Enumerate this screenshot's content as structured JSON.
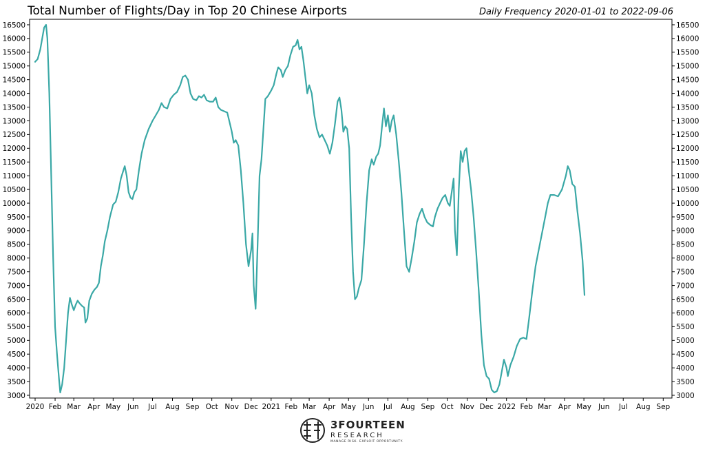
{
  "chart_data": {
    "type": "line",
    "title": "Total Number of Flights/Day in Top 20 Chinese Airports",
    "subtitle": "Daily Frequency 2020-01-01 to 2022-09-06",
    "x_range": [
      "2020-01-01",
      "2022-09-06"
    ],
    "ylim": [
      2900,
      16700
    ],
    "y_ticks": [
      3000,
      3500,
      4000,
      4500,
      5000,
      5500,
      6000,
      6500,
      7000,
      7500,
      8000,
      8500,
      9000,
      9500,
      10000,
      10500,
      11000,
      11500,
      12000,
      12500,
      13000,
      13500,
      14000,
      14500,
      15000,
      15500,
      16000,
      16500
    ],
    "x_ticks": [
      {
        "date": "2020-01-01",
        "label": "2020"
      },
      {
        "date": "2020-02-01",
        "label": "Feb"
      },
      {
        "date": "2020-03-01",
        "label": "Mar"
      },
      {
        "date": "2020-04-01",
        "label": "Apr"
      },
      {
        "date": "2020-05-01",
        "label": "May"
      },
      {
        "date": "2020-06-01",
        "label": "Jun"
      },
      {
        "date": "2020-07-01",
        "label": "Jul"
      },
      {
        "date": "2020-08-01",
        "label": "Aug"
      },
      {
        "date": "2020-09-01",
        "label": "Sep"
      },
      {
        "date": "2020-10-01",
        "label": "Oct"
      },
      {
        "date": "2020-11-01",
        "label": "Nov"
      },
      {
        "date": "2020-12-01",
        "label": "Dec"
      },
      {
        "date": "2021-01-01",
        "label": "2021"
      },
      {
        "date": "2021-02-01",
        "label": "Feb"
      },
      {
        "date": "2021-03-01",
        "label": "Mar"
      },
      {
        "date": "2021-04-01",
        "label": "Apr"
      },
      {
        "date": "2021-05-01",
        "label": "May"
      },
      {
        "date": "2021-06-01",
        "label": "Jun"
      },
      {
        "date": "2021-07-01",
        "label": "Jul"
      },
      {
        "date": "2021-08-01",
        "label": "Aug"
      },
      {
        "date": "2021-09-01",
        "label": "Sep"
      },
      {
        "date": "2021-10-01",
        "label": "Oct"
      },
      {
        "date": "2021-11-01",
        "label": "Nov"
      },
      {
        "date": "2021-12-01",
        "label": "Dec"
      },
      {
        "date": "2022-01-01",
        "label": "2022"
      },
      {
        "date": "2022-02-01",
        "label": "Feb"
      },
      {
        "date": "2022-03-01",
        "label": "Mar"
      },
      {
        "date": "2022-04-01",
        "label": "Apr"
      },
      {
        "date": "2022-05-01",
        "label": "May"
      },
      {
        "date": "2022-06-01",
        "label": "Jun"
      },
      {
        "date": "2022-07-01",
        "label": "Jul"
      },
      {
        "date": "2022-08-01",
        "label": "Aug"
      },
      {
        "date": "2022-09-01",
        "label": "Sep"
      }
    ],
    "series": [
      {
        "color": "#3aa8a6",
        "points": [
          [
            "2020-01-01",
            15150
          ],
          [
            "2020-01-05",
            15250
          ],
          [
            "2020-01-09",
            15600
          ],
          [
            "2020-01-12",
            16000
          ],
          [
            "2020-01-15",
            16400
          ],
          [
            "2020-01-18",
            16500
          ],
          [
            "2020-01-20",
            16000
          ],
          [
            "2020-01-23",
            14000
          ],
          [
            "2020-01-26",
            11000
          ],
          [
            "2020-01-29",
            8000
          ],
          [
            "2020-02-01",
            5500
          ],
          [
            "2020-02-04",
            4500
          ],
          [
            "2020-02-07",
            3600
          ],
          [
            "2020-02-09",
            3100
          ],
          [
            "2020-02-12",
            3400
          ],
          [
            "2020-02-15",
            4000
          ],
          [
            "2020-02-18",
            5000
          ],
          [
            "2020-02-21",
            6000
          ],
          [
            "2020-02-24",
            6550
          ],
          [
            "2020-02-27",
            6300
          ],
          [
            "2020-03-01",
            6100
          ],
          [
            "2020-03-04",
            6300
          ],
          [
            "2020-03-07",
            6450
          ],
          [
            "2020-03-10",
            6350
          ],
          [
            "2020-03-14",
            6250
          ],
          [
            "2020-03-17",
            6200
          ],
          [
            "2020-03-19",
            5650
          ],
          [
            "2020-03-22",
            5800
          ],
          [
            "2020-03-25",
            6450
          ],
          [
            "2020-03-29",
            6700
          ],
          [
            "2020-04-02",
            6850
          ],
          [
            "2020-04-06",
            6950
          ],
          [
            "2020-04-09",
            7100
          ],
          [
            "2020-04-12",
            7700
          ],
          [
            "2020-04-15",
            8100
          ],
          [
            "2020-04-18",
            8600
          ],
          [
            "2020-04-22",
            9000
          ],
          [
            "2020-04-26",
            9500
          ],
          [
            "2020-05-01",
            9950
          ],
          [
            "2020-05-05",
            10050
          ],
          [
            "2020-05-09",
            10400
          ],
          [
            "2020-05-13",
            10900
          ],
          [
            "2020-05-17",
            11200
          ],
          [
            "2020-05-19",
            11350
          ],
          [
            "2020-05-22",
            11000
          ],
          [
            "2020-05-25",
            10400
          ],
          [
            "2020-05-28",
            10200
          ],
          [
            "2020-05-31",
            10150
          ],
          [
            "2020-06-03",
            10400
          ],
          [
            "2020-06-06",
            10500
          ],
          [
            "2020-06-10",
            11200
          ],
          [
            "2020-06-14",
            11800
          ],
          [
            "2020-06-19",
            12300
          ],
          [
            "2020-06-25",
            12700
          ],
          [
            "2020-07-01",
            13000
          ],
          [
            "2020-07-06",
            13200
          ],
          [
            "2020-07-11",
            13400
          ],
          [
            "2020-07-15",
            13650
          ],
          [
            "2020-07-19",
            13500
          ],
          [
            "2020-07-24",
            13450
          ],
          [
            "2020-07-29",
            13800
          ],
          [
            "2020-08-03",
            13950
          ],
          [
            "2020-08-08",
            14050
          ],
          [
            "2020-08-13",
            14300
          ],
          [
            "2020-08-17",
            14600
          ],
          [
            "2020-08-21",
            14650
          ],
          [
            "2020-08-25",
            14500
          ],
          [
            "2020-08-29",
            14000
          ],
          [
            "2020-09-02",
            13800
          ],
          [
            "2020-09-07",
            13750
          ],
          [
            "2020-09-11",
            13900
          ],
          [
            "2020-09-15",
            13850
          ],
          [
            "2020-09-19",
            13950
          ],
          [
            "2020-09-23",
            13750
          ],
          [
            "2020-09-28",
            13700
          ],
          [
            "2020-10-03",
            13700
          ],
          [
            "2020-10-07",
            13850
          ],
          [
            "2020-10-11",
            13500
          ],
          [
            "2020-10-15",
            13400
          ],
          [
            "2020-10-20",
            13350
          ],
          [
            "2020-10-25",
            13300
          ],
          [
            "2020-10-29",
            12900
          ],
          [
            "2020-11-01",
            12600
          ],
          [
            "2020-11-04",
            12200
          ],
          [
            "2020-11-07",
            12300
          ],
          [
            "2020-11-11",
            12100
          ],
          [
            "2020-11-15",
            11200
          ],
          [
            "2020-11-19",
            10000
          ],
          [
            "2020-11-23",
            8500
          ],
          [
            "2020-11-27",
            7700
          ],
          [
            "2020-12-01",
            8300
          ],
          [
            "2020-12-03",
            8900
          ],
          [
            "2020-12-05",
            7000
          ],
          [
            "2020-12-08",
            6150
          ],
          [
            "2020-12-11",
            8500
          ],
          [
            "2020-12-14",
            11000
          ],
          [
            "2020-12-17",
            11600
          ],
          [
            "2020-12-20",
            12700
          ],
          [
            "2020-12-23",
            13800
          ],
          [
            "2020-12-27",
            13900
          ],
          [
            "2021-01-01",
            14100
          ],
          [
            "2021-01-05",
            14300
          ],
          [
            "2021-01-09",
            14700
          ],
          [
            "2021-01-12",
            14950
          ],
          [
            "2021-01-16",
            14850
          ],
          [
            "2021-01-19",
            14600
          ],
          [
            "2021-01-23",
            14850
          ],
          [
            "2021-01-27",
            15000
          ],
          [
            "2021-01-31",
            15400
          ],
          [
            "2021-02-04",
            15700
          ],
          [
            "2021-02-08",
            15750
          ],
          [
            "2021-02-11",
            15950
          ],
          [
            "2021-02-14",
            15600
          ],
          [
            "2021-02-17",
            15700
          ],
          [
            "2021-02-20",
            15200
          ],
          [
            "2021-02-23",
            14600
          ],
          [
            "2021-02-26",
            14000
          ],
          [
            "2021-03-01",
            14300
          ],
          [
            "2021-03-05",
            14000
          ],
          [
            "2021-03-09",
            13200
          ],
          [
            "2021-03-13",
            12700
          ],
          [
            "2021-03-17",
            12400
          ],
          [
            "2021-03-21",
            12500
          ],
          [
            "2021-03-25",
            12300
          ],
          [
            "2021-03-29",
            12100
          ],
          [
            "2021-04-02",
            11800
          ],
          [
            "2021-04-06",
            12200
          ],
          [
            "2021-04-10",
            12900
          ],
          [
            "2021-04-14",
            13700
          ],
          [
            "2021-04-17",
            13850
          ],
          [
            "2021-04-20",
            13400
          ],
          [
            "2021-04-23",
            12600
          ],
          [
            "2021-04-26",
            12800
          ],
          [
            "2021-04-29",
            12700
          ],
          [
            "2021-05-02",
            12000
          ],
          [
            "2021-05-05",
            9500
          ],
          [
            "2021-05-08",
            7500
          ],
          [
            "2021-05-11",
            6500
          ],
          [
            "2021-05-14",
            6600
          ],
          [
            "2021-05-17",
            6900
          ],
          [
            "2021-05-21",
            7200
          ],
          [
            "2021-05-25",
            8500
          ],
          [
            "2021-05-29",
            10000
          ],
          [
            "2021-06-02",
            11200
          ],
          [
            "2021-06-06",
            11600
          ],
          [
            "2021-06-09",
            11400
          ],
          [
            "2021-06-13",
            11700
          ],
          [
            "2021-06-16",
            11800
          ],
          [
            "2021-06-19",
            12100
          ],
          [
            "2021-06-22",
            12800
          ],
          [
            "2021-06-25",
            13450
          ],
          [
            "2021-06-28",
            12800
          ],
          [
            "2021-07-01",
            13200
          ],
          [
            "2021-07-04",
            12600
          ],
          [
            "2021-07-07",
            13000
          ],
          [
            "2021-07-10",
            13200
          ],
          [
            "2021-07-14",
            12500
          ],
          [
            "2021-07-18",
            11500
          ],
          [
            "2021-07-22",
            10400
          ],
          [
            "2021-07-26",
            9000
          ],
          [
            "2021-07-30",
            7700
          ],
          [
            "2021-08-03",
            7500
          ],
          [
            "2021-08-07",
            8000
          ],
          [
            "2021-08-11",
            8600
          ],
          [
            "2021-08-15",
            9300
          ],
          [
            "2021-08-19",
            9600
          ],
          [
            "2021-08-23",
            9800
          ],
          [
            "2021-08-27",
            9500
          ],
          [
            "2021-08-31",
            9300
          ],
          [
            "2021-09-05",
            9200
          ],
          [
            "2021-09-09",
            9150
          ],
          [
            "2021-09-12",
            9500
          ],
          [
            "2021-09-16",
            9800
          ],
          [
            "2021-09-20",
            10000
          ],
          [
            "2021-09-24",
            10200
          ],
          [
            "2021-09-28",
            10300
          ],
          [
            "2021-10-02",
            10000
          ],
          [
            "2021-10-05",
            9900
          ],
          [
            "2021-10-08",
            10400
          ],
          [
            "2021-10-11",
            10900
          ],
          [
            "2021-10-13",
            9000
          ],
          [
            "2021-10-16",
            8100
          ],
          [
            "2021-10-19",
            10500
          ],
          [
            "2021-10-22",
            11900
          ],
          [
            "2021-10-25",
            11500
          ],
          [
            "2021-10-28",
            11900
          ],
          [
            "2021-10-31",
            12000
          ],
          [
            "2021-11-03",
            11300
          ],
          [
            "2021-11-07",
            10500
          ],
          [
            "2021-11-11",
            9500
          ],
          [
            "2021-11-15",
            8200
          ],
          [
            "2021-11-19",
            6800
          ],
          [
            "2021-11-23",
            5200
          ],
          [
            "2021-11-27",
            4100
          ],
          [
            "2021-12-01",
            3700
          ],
          [
            "2021-12-05",
            3600
          ],
          [
            "2021-12-09",
            3200
          ],
          [
            "2021-12-13",
            3100
          ],
          [
            "2021-12-17",
            3150
          ],
          [
            "2021-12-21",
            3400
          ],
          [
            "2021-12-25",
            3900
          ],
          [
            "2021-12-28",
            4300
          ],
          [
            "2022-01-01",
            4000
          ],
          [
            "2022-01-03",
            3700
          ],
          [
            "2022-01-07",
            4100
          ],
          [
            "2022-01-12",
            4400
          ],
          [
            "2022-01-17",
            4800
          ],
          [
            "2022-01-22",
            5050
          ],
          [
            "2022-01-27",
            5100
          ],
          [
            "2022-02-01",
            5050
          ],
          [
            "2022-02-05",
            5800
          ],
          [
            "2022-02-10",
            6800
          ],
          [
            "2022-02-15",
            7700
          ],
          [
            "2022-02-20",
            8300
          ],
          [
            "2022-02-25",
            8900
          ],
          [
            "2022-03-02",
            9500
          ],
          [
            "2022-03-06",
            10000
          ],
          [
            "2022-03-10",
            10300
          ],
          [
            "2022-03-16",
            10300
          ],
          [
            "2022-03-22",
            10250
          ],
          [
            "2022-03-28",
            10500
          ],
          [
            "2022-04-03",
            11000
          ],
          [
            "2022-04-06",
            11350
          ],
          [
            "2022-04-09",
            11200
          ],
          [
            "2022-04-13",
            10700
          ],
          [
            "2022-04-17",
            10600
          ],
          [
            "2022-04-21",
            9700
          ],
          [
            "2022-04-25",
            8900
          ],
          [
            "2022-04-29",
            7900
          ],
          [
            "2022-05-02",
            6650
          ]
        ]
      }
    ]
  },
  "logo": {
    "name": "3FOURTEEN",
    "sub": "RESEARCH",
    "tagline": "MANAGE RISK. EXPLOIT OPPORTUNITY."
  }
}
